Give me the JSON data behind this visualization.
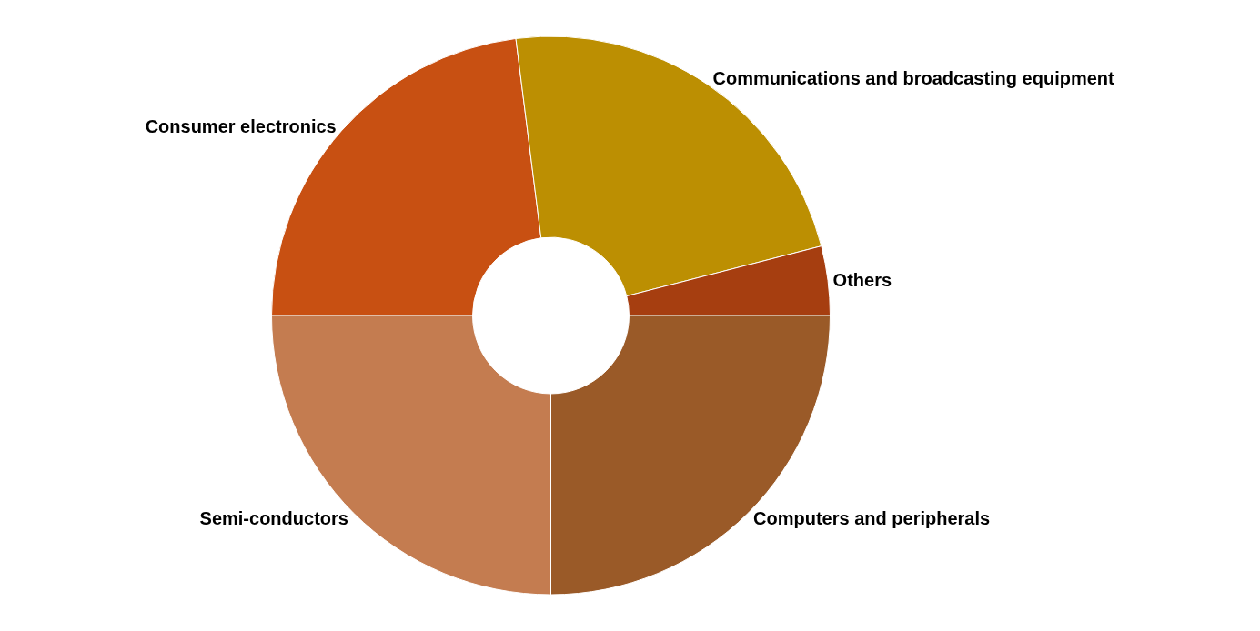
{
  "chart_data": {
    "type": "donut",
    "categories": [
      "Consumer electronics",
      "Communications and broadcasting equipment",
      "Others",
      "Computers and peripherals",
      "Semi-conductors"
    ],
    "values": [
      23,
      23,
      4,
      25,
      25
    ],
    "colors": [
      "#c85012",
      "#bc8f02",
      "#a63e10",
      "#9a5a28",
      "#c47c50"
    ],
    "legend": false
  }
}
